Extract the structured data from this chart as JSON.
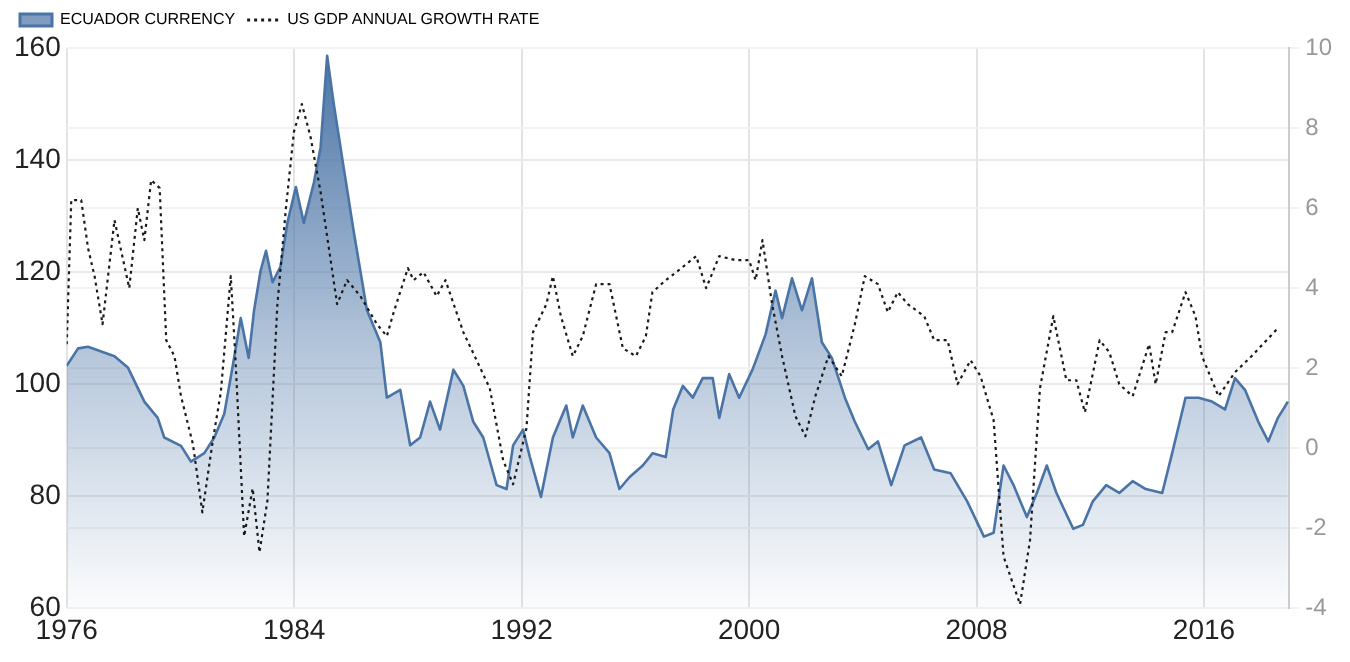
{
  "chart_data": {
    "type": "area",
    "xlim": [
      1976,
      2019
    ],
    "xticks": [
      1976,
      1984,
      1992,
      2000,
      2008,
      2016
    ],
    "ylim": [
      60,
      160
    ],
    "yticks": [
      60,
      80,
      100,
      120,
      140,
      160
    ],
    "y2lim": [
      -4,
      10
    ],
    "y2ticks": [
      -4,
      -2,
      0,
      2,
      4,
      6,
      8,
      10
    ],
    "grid": true,
    "legend": "top left",
    "series": [
      {
        "name": "ECUADOR CURRENCY",
        "type": "area",
        "color": "#4a74a6",
        "x": [
          1976,
          1976.4,
          1976.75,
          1977.68,
          1978.15,
          1978.73,
          1979.2,
          1979.43,
          1980.02,
          1980.37,
          1980.84,
          1981.19,
          1981.54,
          1981.84,
          1982.12,
          1982.4,
          1982.59,
          1982.82,
          1983.01,
          1983.24,
          1983.52,
          1983.76,
          1984.06,
          1984.34,
          1984.69,
          1984.93,
          1985.16,
          1985.39,
          1985.74,
          1986.09,
          1986.56,
          1987.03,
          1987.26,
          1987.73,
          1988.08,
          1988.43,
          1988.78,
          1989.13,
          1989.6,
          1989.95,
          1990.3,
          1990.65,
          1991.12,
          1991.47,
          1991.7,
          1992.05,
          1992.29,
          1992.68,
          1993.1,
          1993.57,
          1993.8,
          1994.15,
          1994.62,
          1995.09,
          1995.44,
          1995.79,
          1996.26,
          1996.61,
          1997.07,
          1997.33,
          1997.67,
          1998.02,
          1998.37,
          1998.72,
          1998.95,
          1999.3,
          1999.65,
          2000.12,
          2000.58,
          2000.93,
          2001.16,
          2001.51,
          2001.86,
          2002.21,
          2002.56,
          2002.91,
          2003.37,
          2003.72,
          2004.19,
          2004.53,
          2005,
          2005.47,
          2006.05,
          2006.51,
          2007.09,
          2007.67,
          2008.26,
          2008.6,
          2008.95,
          2009.3,
          2009.77,
          2010.12,
          2010.47,
          2010.81,
          2011.4,
          2011.74,
          2012.09,
          2012.56,
          2013.02,
          2013.49,
          2013.95,
          2014.53,
          2014.88,
          2015.35,
          2015.81,
          2016.28,
          2016.74,
          2017.09,
          2017.44,
          2017.91,
          2018.26,
          2018.6,
          2018.95
        ],
        "values": [
          103.3,
          106.4,
          106.7,
          105,
          103,
          96.9,
          94,
          90.5,
          89,
          86.2,
          87.7,
          90.5,
          94.7,
          103.3,
          111.8,
          104.7,
          113.2,
          120.3,
          123.8,
          118.2,
          121,
          128.8,
          135.2,
          128.8,
          135.9,
          142.3,
          158.6,
          150.1,
          138.7,
          127.4,
          113.2,
          107.5,
          97.6,
          99,
          89.1,
          90.5,
          96.9,
          91.9,
          102.6,
          99.7,
          93.3,
          90.5,
          82,
          81.3,
          89.1,
          91.9,
          87,
          79.9,
          90.5,
          96.2,
          90.5,
          96.2,
          90.5,
          87.7,
          81.3,
          83.4,
          85.5,
          87.7,
          87,
          95.5,
          99.7,
          97.6,
          101.1,
          101.1,
          94,
          101.8,
          97.6,
          102.6,
          108.9,
          116.7,
          111.8,
          118.9,
          113.2,
          118.9,
          107.5,
          104.7,
          97.6,
          93.3,
          88.4,
          89.8,
          82,
          89.1,
          90.5,
          84.8,
          84.1,
          79.1,
          72.8,
          73.5,
          85.5,
          82,
          76.3,
          80.6,
          85.5,
          80.6,
          74.2,
          74.9,
          79.1,
          82,
          80.6,
          82.7,
          81.3,
          80.6,
          87.7,
          97.6,
          97.6,
          96.9,
          95.5,
          101.1,
          99,
          93.3,
          89.8,
          94,
          96.9
        ]
      },
      {
        "name": "US GDP ANNUAL GROWTH RATE",
        "type": "line",
        "axis": "y2",
        "color": "#1a1a1a",
        "line_style": "dotted",
        "marker": "none",
        "x": [
          1976,
          1976.16,
          1976.51,
          1976.75,
          1976.98,
          1977.26,
          1977.68,
          1978.2,
          1978.5,
          1978.73,
          1978.97,
          1979.27,
          1979.5,
          1979.79,
          1980.02,
          1980.44,
          1980.77,
          1981.14,
          1981.42,
          1981.77,
          1981.93,
          1982.24,
          1982.54,
          1982.78,
          1983.06,
          1983.41,
          1983.71,
          1983.99,
          1984.27,
          1984.57,
          1984.93,
          1985.51,
          1985.86,
          1986.33,
          1986.91,
          1987.26,
          1987.5,
          1988,
          1988.2,
          1988.55,
          1989.01,
          1989.32,
          1989.95,
          1990.88,
          1991.35,
          1991.7,
          1992.17,
          1992.4,
          1992.87,
          1993.1,
          1993.38,
          1993.8,
          1994.15,
          1994.62,
          1995.09,
          1995.56,
          1996.02,
          1996.37,
          1996.6,
          1997.07,
          1997.44,
          1997.79,
          1998.14,
          1998.49,
          1998.95,
          1999.53,
          2000,
          2000.23,
          2000.47,
          2000.81,
          2001.16,
          2001.63,
          2001.98,
          2002.33,
          2002.79,
          2003.26,
          2003.72,
          2004.07,
          2004.53,
          2004.88,
          2005.23,
          2005.58,
          2006.16,
          2006.51,
          2006.98,
          2007.33,
          2007.79,
          2008.14,
          2008.6,
          2008.95,
          2009.53,
          2009.88,
          2010.23,
          2010.7,
          2011.16,
          2011.51,
          2011.81,
          2012.33,
          2012.67,
          2013.02,
          2013.49,
          2014.07,
          2014.3,
          2014.65,
          2014.88,
          2015.35,
          2015.7,
          2015.93,
          2016.51,
          2017.09,
          2017.67,
          2018.6
        ],
        "values": [
          2.6,
          6.2,
          6.2,
          5,
          4.3,
          3.1,
          5.7,
          4,
          6,
          5.2,
          6.7,
          6.5,
          2.7,
          2.3,
          1.3,
          0.1,
          -1.6,
          0.2,
          1.4,
          4.3,
          2.3,
          -2.2,
          -1,
          -2.6,
          -1.3,
          3.6,
          6,
          7.9,
          8.6,
          7.8,
          6.4,
          3.6,
          4.2,
          3.8,
          3.1,
          2.8,
          3.4,
          4.5,
          4.2,
          4.4,
          3.8,
          4.2,
          2.9,
          1.5,
          -0.3,
          -0.9,
          0.5,
          2.9,
          3.6,
          4.3,
          3.3,
          2.3,
          2.8,
          4.1,
          4.1,
          2.5,
          2.3,
          2.8,
          3.9,
          4.2,
          4.4,
          4.6,
          4.8,
          4,
          4.8,
          4.7,
          4.7,
          4.2,
          5.2,
          3.6,
          2.3,
          0.8,
          0.3,
          1.3,
          2.3,
          1.8,
          3.1,
          4.3,
          4.1,
          3.4,
          3.9,
          3.6,
          3.3,
          2.7,
          2.7,
          1.6,
          2.2,
          1.8,
          0.7,
          -2.7,
          -3.9,
          -2.3,
          1.5,
          3.3,
          1.7,
          1.7,
          0.9,
          2.7,
          2.4,
          1.6,
          1.3,
          2.6,
          1.6,
          2.9,
          2.9,
          3.9,
          3.3,
          2.3,
          1.3,
          1.9,
          2.3,
          3
        ]
      }
    ]
  }
}
